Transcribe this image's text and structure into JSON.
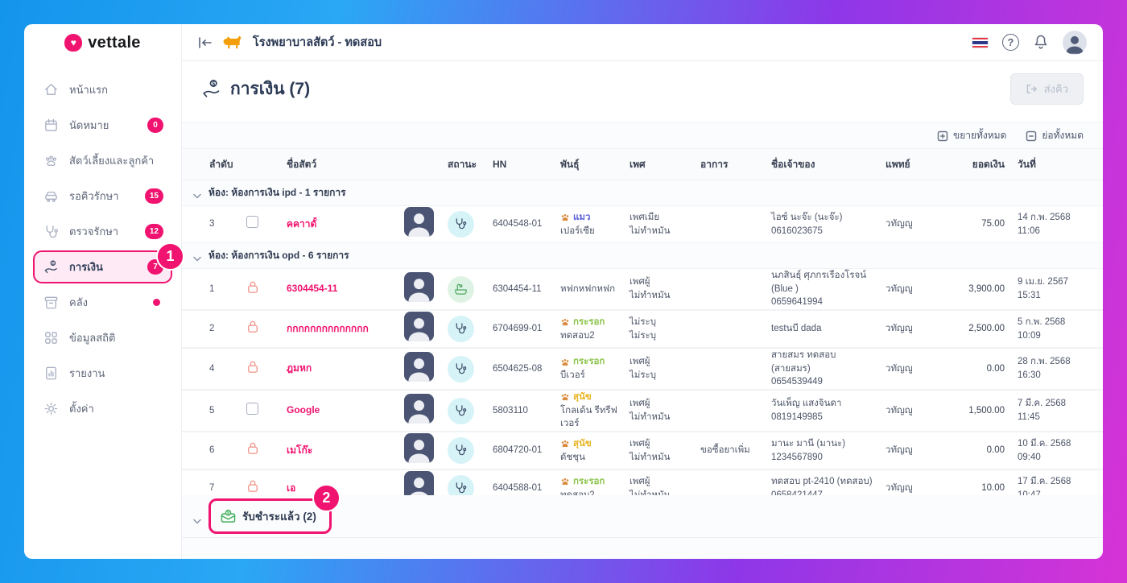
{
  "brand": {
    "logo_text": "vettale",
    "accent_color": "#f0136f"
  },
  "annotations": {
    "sidebar_step": "1",
    "paid_step": "2"
  },
  "sidebar": {
    "items": [
      {
        "label": "หน้าแรก",
        "icon": "home",
        "badge": null
      },
      {
        "label": "นัดหมาย",
        "icon": "calendar",
        "badge": "0"
      },
      {
        "label": "สัตว์เลี้ยงและลูกค้า",
        "icon": "paw",
        "badge": null
      },
      {
        "label": "รอคิวรักษา",
        "icon": "car",
        "badge": "15"
      },
      {
        "label": "ตรวจรักษา",
        "icon": "stethoscope",
        "badge": "12"
      },
      {
        "label": "การเงิน",
        "icon": "finance",
        "badge": "7",
        "active": true,
        "annotation": "1"
      },
      {
        "label": "คลัง",
        "icon": "archive",
        "badge": "dot"
      },
      {
        "label": "ข้อมูลสถิติ",
        "icon": "stats",
        "badge": null
      },
      {
        "label": "รายงาน",
        "icon": "report",
        "badge": null
      },
      {
        "label": "ตั้งค่า",
        "icon": "gear",
        "badge": null
      }
    ]
  },
  "topbar": {
    "clinic_name": "โรงพยาบาลสัตว์ - ทดสอบ"
  },
  "page": {
    "title": "การเงิน (7)",
    "send_queue_label": "ส่งคิว",
    "expand_all_label": "ขยายทั้งหมด",
    "collapse_all_label": "ย่อทั้งหมด"
  },
  "table": {
    "header_cells": [
      "ลำดับ",
      "",
      "ชื่อสัตว์",
      "",
      "สถานะ",
      "HN",
      "พันธุ์",
      "เพศ",
      "อาการ",
      "ชื่อเจ้าของ",
      "แพทย์",
      "ยอดเงิน",
      "วันที่"
    ],
    "groups": [
      {
        "title": "ห้อง: ห้องการเงิน ipd - 1 รายการ",
        "rows": [
          {
            "no": "3",
            "select": "checkbox",
            "name": "คคาาดั้",
            "status": "stethoscope",
            "hn": "6404548-01",
            "species": "แมว",
            "species_icon": "cat-icon",
            "species_color": "#5b5fd6",
            "breed": "เปอร์เซีย",
            "sex": "เพศเมีย",
            "neuter": "ไม่ทำหมัน",
            "symptom": "",
            "owner": "ไอซ์ นะจ๊ะ (นะจ๊ะ)",
            "phone": "0616023675",
            "doctor": "วทัญญู",
            "amount": "75.00",
            "date": "14 ก.พ. 2568",
            "time": "11:06"
          }
        ]
      },
      {
        "title": "ห้อง: ห้องการเงิน opd - 6 รายการ",
        "rows": [
          {
            "no": "1",
            "select": "lock",
            "name": "6304454-11",
            "status": "grooming",
            "hn": "6304454-11",
            "species": "",
            "species_icon": "",
            "species_color": "",
            "breed": "หฟกหฟกหฟก",
            "sex": "เพศผู้",
            "neuter": "ไม่ทำหมัน",
            "symptom": "",
            "owner": "นภสินธุ์ ศุภกรเรืองโรจน์ (Blue )",
            "phone": "0659641994",
            "doctor": "วทัญญู",
            "amount": "3,900.00",
            "date": "9 เม.ย. 2567",
            "time": "15:31"
          },
          {
            "no": "2",
            "select": "lock",
            "name": "กกกกกกกกกกกกกก",
            "status": "stethoscope",
            "hn": "6704699-01",
            "species": "กระรอก",
            "species_icon": "squirrel-icon",
            "species_color": "#8bc34a",
            "breed": "ทดสอบ2",
            "sex": "ไม่ระบุ",
            "neuter": "ไม่ระบุ",
            "symptom": "",
            "owner": "testนบี dada",
            "phone": "",
            "doctor": "วทัญญู",
            "amount": "2,500.00",
            "date": "5 ก.พ. 2568",
            "time": "10:09"
          },
          {
            "no": "4",
            "select": "lock",
            "name": "ฎมหก",
            "status": "stethoscope",
            "hn": "6504625-08",
            "species": "กระรอก",
            "species_icon": "squirrel-icon",
            "species_color": "#8bc34a",
            "breed": "บีเวอร์",
            "sex": "เพศผู้",
            "neuter": "ไม่ระบุ",
            "symptom": "",
            "owner": "สายสมร ทดสอบ (สายสมร)",
            "phone": "0654539449",
            "doctor": "วทัญญู",
            "amount": "0.00",
            "date": "28 ก.พ. 2568",
            "time": "16:30"
          },
          {
            "no": "5",
            "select": "checkbox",
            "name": "Google",
            "status": "stethoscope",
            "hn": "5803110",
            "species": "สุนัข",
            "species_icon": "dog-icon",
            "species_color": "#e6b31e",
            "breed": "โกลเด้น รีทรีฟเวอร์",
            "sex": "เพศผู้",
            "neuter": "ไม่ทำหมัน",
            "symptom": "",
            "owner": "วันเพ็ญ แสงจินดา",
            "phone": "0819149985",
            "doctor": "วทัญญู",
            "amount": "1,500.00",
            "date": "7 มี.ค. 2568",
            "time": "11:45"
          },
          {
            "no": "6",
            "select": "lock",
            "name": "เมโก๊ะ",
            "status": "stethoscope",
            "hn": "6804720-01",
            "species": "สุนัข",
            "species_icon": "dog-icon",
            "species_color": "#e6b31e",
            "breed": "ดัชชุน",
            "sex": "เพศผู้",
            "neuter": "ไม่ทำหมัน",
            "symptom": "ขอซื้อยาเพิ่ม",
            "owner": "มานะ มานี (มานะ)",
            "phone": "1234567890",
            "doctor": "วทัญญู",
            "amount": "0.00",
            "date": "10 มี.ค. 2568",
            "time": "09:40"
          },
          {
            "no": "7",
            "select": "lock",
            "name": "เอ",
            "status": "stethoscope",
            "hn": "6404588-01",
            "species": "กระรอก",
            "species_icon": "squirrel-icon",
            "species_color": "#8bc34a",
            "breed": "ทดสอบ2",
            "sex": "เพศผู้",
            "neuter": "ไม่ทำหมัน",
            "symptom": "",
            "owner": "ทดสอบ pt-2410 (ทดสอบ)",
            "phone": "0658421447",
            "doctor": "วทัญญู",
            "amount": "10.00",
            "date": "17 มี.ค. 2568",
            "time": "10:47"
          }
        ]
      }
    ],
    "paid_section_label": "รับชำระแล้ว (2)"
  }
}
